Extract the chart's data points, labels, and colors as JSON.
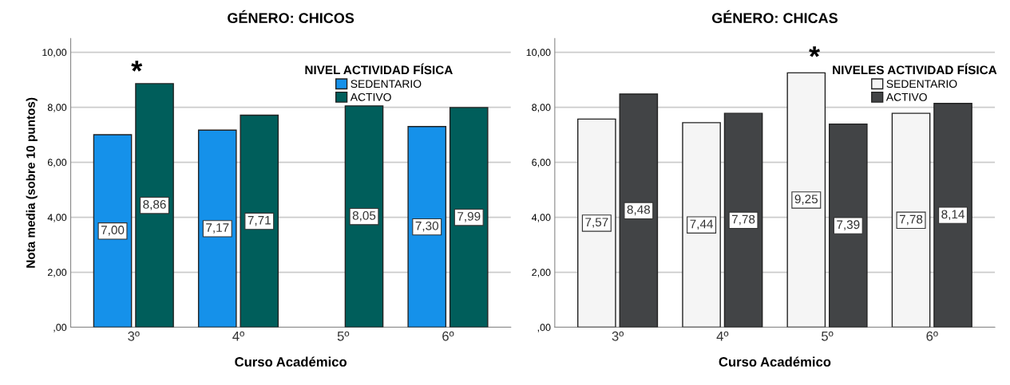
{
  "chart_data": [
    {
      "type": "bar",
      "title": "GÉNERO: CHICOS",
      "xlabel": "Curso Académico",
      "ylabel": "Nota media (sobre 10 puntos)",
      "legend_title": "NIVEL ACTIVIDAD FÍSICA",
      "legend": "top",
      "grid": "y",
      "categories": [
        "3º",
        "4º",
        "5º",
        "6º"
      ],
      "series": [
        {
          "name": "SEDENTARIO",
          "color": "#1591ea",
          "values": [
            7.0,
            7.17,
            null,
            7.3
          ],
          "value_labels": [
            "7,00",
            "7,17",
            null,
            "7,30"
          ]
        },
        {
          "name": "ACTIVO",
          "color": "#005e5b",
          "values": [
            8.86,
            7.71,
            8.05,
            7.99
          ],
          "value_labels": [
            "8,86",
            "7,71",
            "8,05",
            "7,99"
          ]
        }
      ],
      "ylim": [
        0,
        10.5
      ],
      "yticks": [
        {
          "value": 0,
          "label": ",00"
        },
        {
          "value": 2,
          "label": "2,00"
        },
        {
          "value": 4,
          "label": "4,00"
        },
        {
          "value": 6,
          "label": "6,00"
        },
        {
          "value": 8,
          "label": "8,00"
        },
        {
          "value": 10,
          "label": "10,00"
        }
      ],
      "annotations": [
        "*"
      ]
    },
    {
      "type": "bar",
      "title": "GÉNERO: CHICAS",
      "xlabel": "Curso Académico",
      "legend_title": "NIVELES ACTIVIDAD FÍSICA",
      "legend": "top right",
      "grid": "y",
      "categories": [
        "3º",
        "4º",
        "5º",
        "6º"
      ],
      "series": [
        {
          "name": "SEDENTARIO",
          "color": "#f5f5f5",
          "values": [
            7.57,
            7.44,
            9.25,
            7.78
          ],
          "value_labels": [
            "7,57",
            "7,44",
            "9,25",
            "7,78"
          ]
        },
        {
          "name": "ACTIVO",
          "color": "#424446",
          "values": [
            8.48,
            7.78,
            7.39,
            8.14
          ],
          "value_labels": [
            "8,48",
            "7,78",
            "7,39",
            "8,14"
          ]
        }
      ],
      "ylim": [
        0,
        10.5
      ],
      "yticks": [
        {
          "value": 0,
          "label": ",00"
        },
        {
          "value": 2,
          "label": "2,00"
        },
        {
          "value": 4,
          "label": "4,00"
        },
        {
          "value": 6,
          "label": "6,00"
        },
        {
          "value": 8,
          "label": "8,00"
        },
        {
          "value": 10,
          "label": "10,00"
        }
      ],
      "annotations": [
        "*"
      ]
    }
  ]
}
